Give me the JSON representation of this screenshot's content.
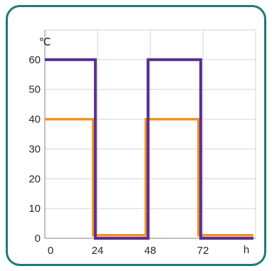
{
  "chart_data": {
    "type": "line",
    "title": "",
    "ylabel": "℃",
    "xlabel": "h",
    "xlim": [
      0,
      96
    ],
    "ylim": [
      0,
      70
    ],
    "x_ticks": [
      0,
      24,
      48,
      72
    ],
    "x_tick_labels": [
      "0",
      "24",
      "48",
      "72"
    ],
    "y_ticks": [
      0,
      10,
      20,
      30,
      40,
      50,
      60
    ],
    "y_tick_labels": [
      "0",
      "10",
      "20",
      "30",
      "40",
      "50",
      "60"
    ],
    "grid": true,
    "series": [
      {
        "color": "#5b2f8f",
        "step": true,
        "points": [
          [
            0,
            60
          ],
          [
            23,
            60
          ],
          [
            23,
            0
          ],
          [
            47,
            0
          ],
          [
            47,
            60
          ],
          [
            71,
            60
          ],
          [
            71,
            0
          ],
          [
            95,
            0
          ]
        ]
      },
      {
        "color": "#f0921e",
        "step": true,
        "points": [
          [
            0,
            40
          ],
          [
            22,
            40
          ],
          [
            22,
            1
          ],
          [
            46,
            1
          ],
          [
            46,
            40
          ],
          [
            70,
            40
          ],
          [
            70,
            1
          ],
          [
            95,
            1
          ]
        ]
      }
    ]
  },
  "colors": {
    "frame": "#1e7b73",
    "grid": "#d4d4d4",
    "axis": "#9a9a9a",
    "text": "#2a2a2a"
  }
}
